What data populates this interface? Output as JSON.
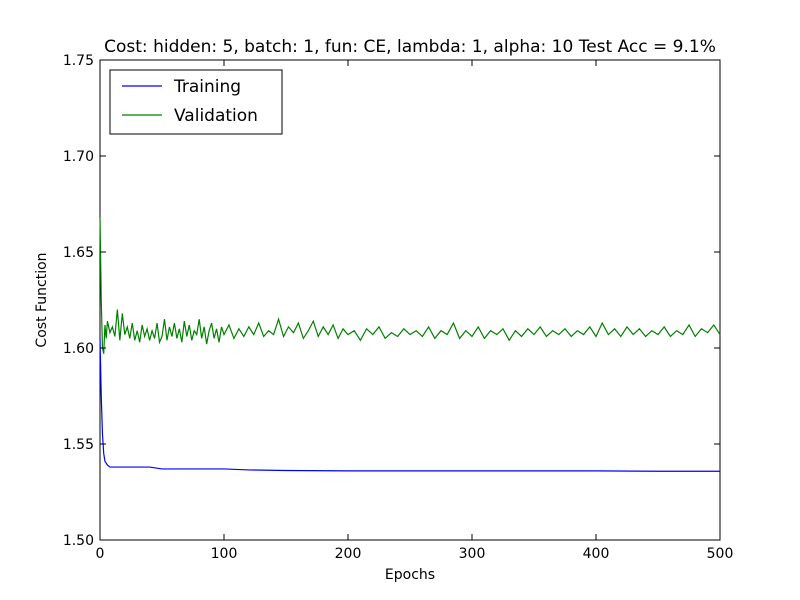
{
  "chart_data": {
    "type": "line",
    "title": "Cost: hidden: 5, batch: 1, fun: CE, lambda: 1, alpha: 10  Test Acc = 9.1%",
    "xlabel": "Epochs",
    "ylabel": "Cost Function",
    "xlim": [
      0,
      500
    ],
    "ylim": [
      1.5,
      1.75
    ],
    "x_ticks": [
      0,
      100,
      200,
      300,
      400,
      500
    ],
    "y_ticks": [
      1.5,
      1.55,
      1.6,
      1.65,
      1.7,
      1.75
    ],
    "x_tick_labels": [
      "0",
      "100",
      "200",
      "300",
      "400",
      "500"
    ],
    "y_tick_labels": [
      "1.50",
      "1.55",
      "1.60",
      "1.65",
      "1.70",
      "1.75"
    ],
    "grid": false,
    "legend_position": "upper-left",
    "series": [
      {
        "name": "Training",
        "color": "#0000ff",
        "x": [
          0,
          1,
          2,
          3,
          4,
          5,
          6,
          8,
          10,
          15,
          20,
          25,
          30,
          40,
          50,
          60,
          80,
          100,
          120,
          150,
          200,
          250,
          300,
          350,
          400,
          450,
          500
        ],
        "y": [
          1.605,
          1.575,
          1.555,
          1.545,
          1.541,
          1.54,
          1.539,
          1.538,
          1.538,
          1.538,
          1.538,
          1.538,
          1.538,
          1.538,
          1.537,
          1.537,
          1.537,
          1.537,
          1.5365,
          1.5362,
          1.536,
          1.536,
          1.536,
          1.536,
          1.536,
          1.5358,
          1.5358
        ]
      },
      {
        "name": "Validation",
        "color": "#008000",
        "x": [
          0,
          1,
          2,
          3,
          4,
          5,
          6,
          8,
          10,
          12,
          14,
          16,
          18,
          20,
          22,
          24,
          26,
          28,
          30,
          32,
          34,
          36,
          38,
          40,
          42,
          44,
          46,
          48,
          50,
          52,
          54,
          56,
          58,
          60,
          62,
          64,
          66,
          68,
          70,
          72,
          74,
          76,
          78,
          80,
          82,
          84,
          86,
          88,
          90,
          92,
          94,
          96,
          98,
          100,
          104,
          108,
          112,
          116,
          120,
          124,
          128,
          132,
          136,
          140,
          144,
          148,
          152,
          156,
          160,
          164,
          168,
          172,
          176,
          180,
          184,
          188,
          192,
          196,
          200,
          205,
          210,
          215,
          220,
          225,
          230,
          235,
          240,
          245,
          250,
          255,
          260,
          265,
          270,
          275,
          280,
          285,
          290,
          295,
          300,
          305,
          310,
          315,
          320,
          325,
          330,
          335,
          340,
          345,
          350,
          355,
          360,
          365,
          370,
          375,
          380,
          385,
          390,
          395,
          400,
          405,
          410,
          415,
          420,
          425,
          430,
          435,
          440,
          445,
          450,
          455,
          460,
          465,
          470,
          475,
          480,
          485,
          490,
          495,
          500
        ],
        "y": [
          1.668,
          1.625,
          1.6,
          1.597,
          1.612,
          1.605,
          1.614,
          1.608,
          1.611,
          1.606,
          1.62,
          1.604,
          1.618,
          1.607,
          1.611,
          1.605,
          1.613,
          1.604,
          1.609,
          1.603,
          1.612,
          1.606,
          1.61,
          1.604,
          1.609,
          1.605,
          1.613,
          1.603,
          1.606,
          1.615,
          1.604,
          1.611,
          1.606,
          1.613,
          1.605,
          1.61,
          1.603,
          1.614,
          1.606,
          1.612,
          1.604,
          1.609,
          1.607,
          1.615,
          1.605,
          1.611,
          1.602,
          1.609,
          1.613,
          1.605,
          1.61,
          1.603,
          1.611,
          1.607,
          1.612,
          1.605,
          1.61,
          1.606,
          1.611,
          1.607,
          1.613,
          1.606,
          1.609,
          1.607,
          1.615,
          1.606,
          1.611,
          1.608,
          1.613,
          1.605,
          1.609,
          1.614,
          1.606,
          1.611,
          1.607,
          1.612,
          1.605,
          1.61,
          1.607,
          1.609,
          1.604,
          1.61,
          1.607,
          1.611,
          1.605,
          1.608,
          1.606,
          1.61,
          1.607,
          1.609,
          1.606,
          1.611,
          1.605,
          1.609,
          1.607,
          1.613,
          1.605,
          1.609,
          1.606,
          1.611,
          1.605,
          1.609,
          1.607,
          1.61,
          1.604,
          1.609,
          1.606,
          1.61,
          1.607,
          1.611,
          1.606,
          1.609,
          1.607,
          1.61,
          1.606,
          1.609,
          1.607,
          1.611,
          1.606,
          1.613,
          1.607,
          1.61,
          1.606,
          1.611,
          1.607,
          1.61,
          1.606,
          1.609,
          1.607,
          1.611,
          1.606,
          1.609,
          1.607,
          1.612,
          1.606,
          1.61,
          1.608,
          1.612,
          1.607
        ]
      }
    ]
  }
}
